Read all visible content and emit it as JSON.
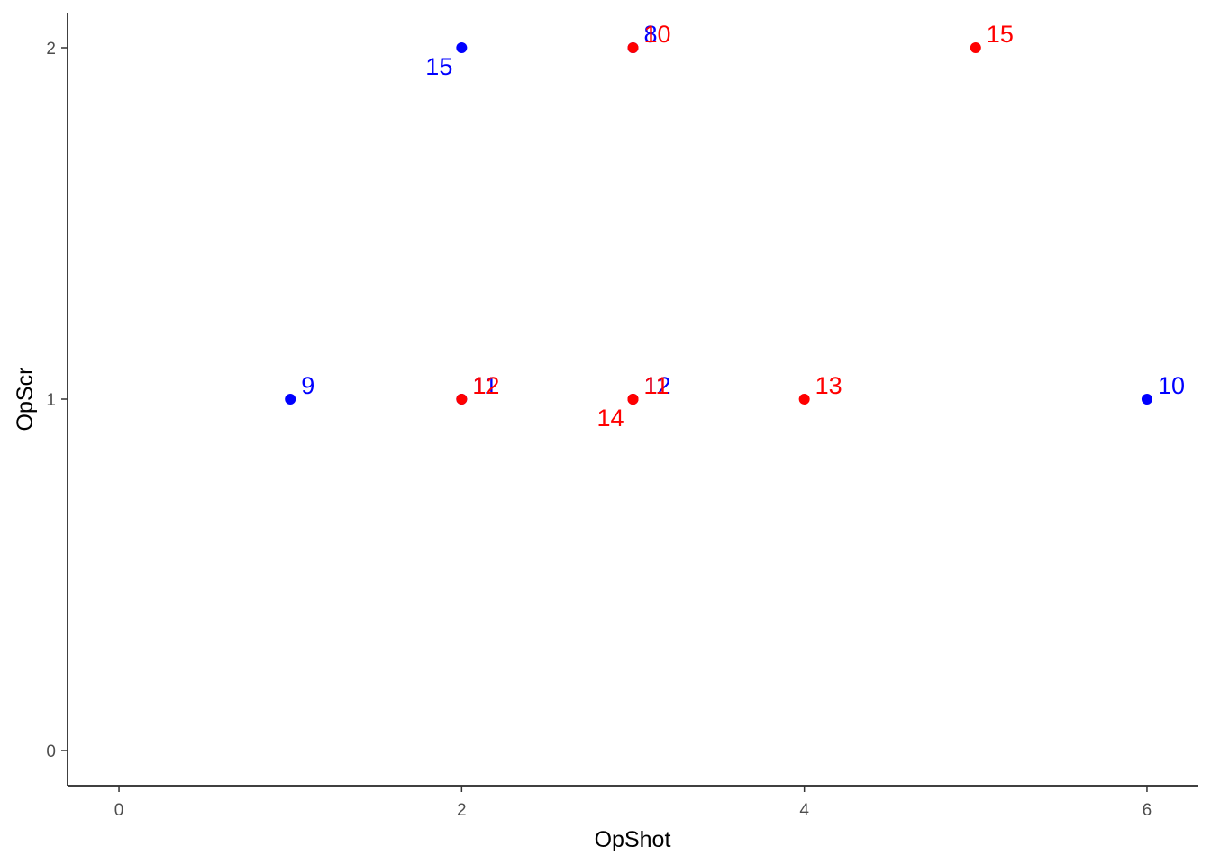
{
  "chart_data": {
    "type": "scatter",
    "xlabel": "OpShot",
    "ylabel": "OpScr",
    "xlim": [
      -0.3,
      6.3
    ],
    "ylim": [
      -0.1,
      2.1
    ],
    "x_ticks": [
      0,
      2,
      4,
      6
    ],
    "y_ticks": [
      0,
      1,
      2
    ],
    "x_tick_labels": [
      "0",
      "2",
      "4",
      "6"
    ],
    "y_tick_labels": [
      "0",
      "1",
      "2"
    ],
    "grid": false,
    "legend": "none",
    "colors": {
      "blue": "#0000ff",
      "red": "#ff0000"
    },
    "points": [
      {
        "x": 2,
        "y": 2,
        "label": "15",
        "color": "blue",
        "anchor": "lower-left"
      },
      {
        "x": 3,
        "y": 2,
        "label": "8",
        "color": "blue",
        "anchor": "upper-right"
      },
      {
        "x": 3,
        "y": 2,
        "label": "10",
        "color": "red",
        "anchor": "upper-right"
      },
      {
        "x": 5,
        "y": 2,
        "label": "15",
        "color": "red",
        "anchor": "upper-right"
      },
      {
        "x": 1,
        "y": 1,
        "label": "9",
        "color": "blue",
        "anchor": "upper-right"
      },
      {
        "x": 2,
        "y": 1,
        "label": "11",
        "color": "blue",
        "anchor": "upper-right"
      },
      {
        "x": 2,
        "y": 1,
        "label": "12",
        "color": "red",
        "anchor": "upper-right"
      },
      {
        "x": 3,
        "y": 1,
        "label": "12",
        "color": "blue",
        "anchor": "upper-right"
      },
      {
        "x": 3,
        "y": 1,
        "label": "11",
        "color": "red",
        "anchor": "upper-right"
      },
      {
        "x": 3,
        "y": 1,
        "label": "14",
        "color": "red",
        "anchor": "lower-left"
      },
      {
        "x": 4,
        "y": 1,
        "label": "13",
        "color": "red",
        "anchor": "upper-right"
      },
      {
        "x": 6,
        "y": 1,
        "label": "10",
        "color": "blue",
        "anchor": "upper-right"
      }
    ]
  }
}
